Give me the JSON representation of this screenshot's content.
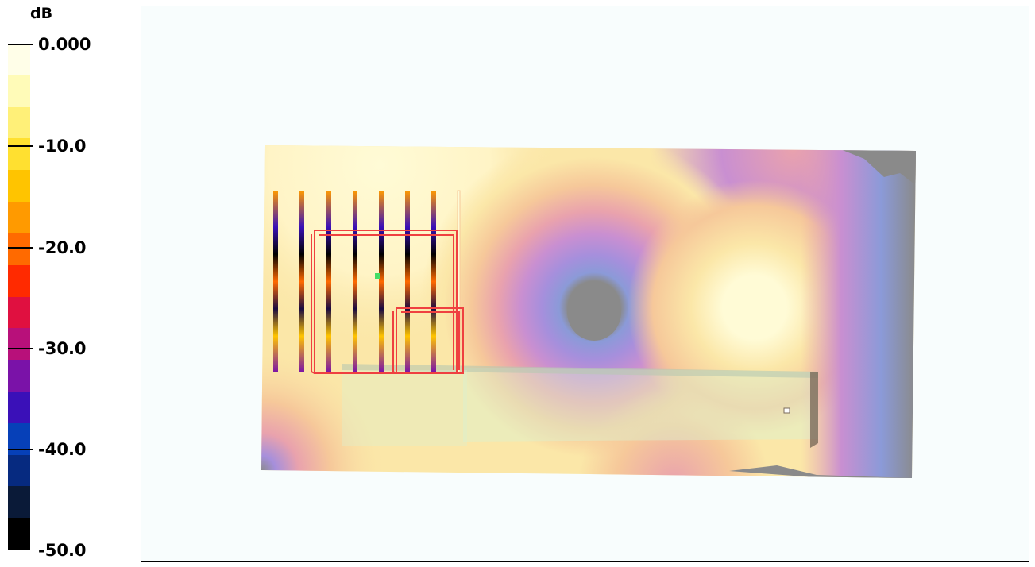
{
  "legend": {
    "unit": "dB",
    "labels": [
      "0.000",
      "-10.0",
      "-20.0",
      "-30.0",
      "-40.0",
      "-50.0"
    ],
    "range": [
      -50,
      0
    ],
    "colors": [
      "#000000",
      "#0a1a38",
      "#062a80",
      "#0640b8",
      "#3a10b8",
      "#7a12a8",
      "#b8107a",
      "#e01040",
      "#ff2a00",
      "#ff6a00",
      "#ff9a00",
      "#ffc400",
      "#ffe030",
      "#fff078",
      "#fffbb8",
      "#fffee8"
    ]
  },
  "viewport": {
    "background": "#f8fdfd",
    "heatmap_colors": {
      "hot": "#fffbd6",
      "warm": "#fbe7a8",
      "orange": "#f6c89a",
      "pink": "#e9a2ad",
      "magenta": "#c98fd1",
      "violet": "#a68fdc",
      "blue": "#8b9ad8",
      "null": "#8a8a8a"
    },
    "overlay_color": "#ef4040"
  }
}
